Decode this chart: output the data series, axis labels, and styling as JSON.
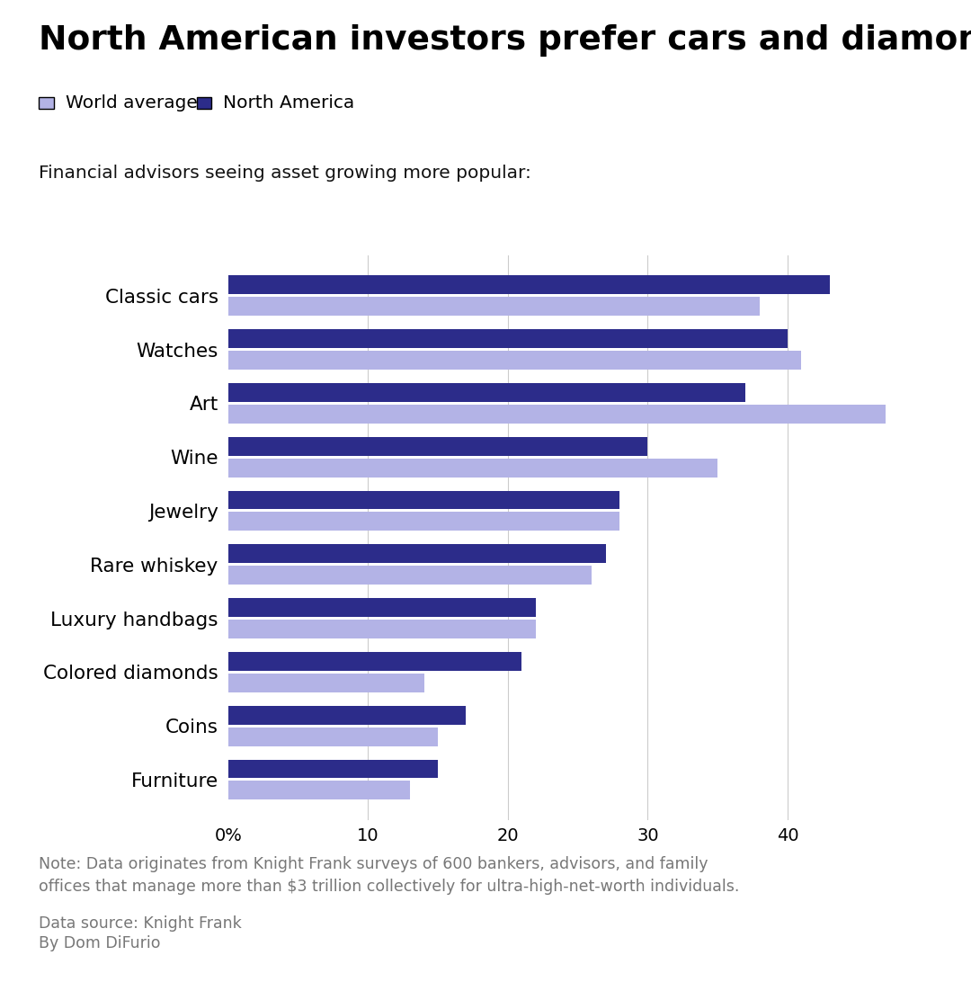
{
  "title": "North American investors prefer cars and diamonds",
  "subtitle": "Financial advisors seeing asset growing more popular:",
  "categories": [
    "Classic cars",
    "Watches",
    "Art",
    "Wine",
    "Jewelry",
    "Rare whiskey",
    "Luxury handbags",
    "Colored diamonds",
    "Coins",
    "Furniture"
  ],
  "world_avg": [
    38,
    41,
    47,
    35,
    28,
    26,
    22,
    14,
    15,
    13
  ],
  "north_america": [
    43,
    40,
    37,
    30,
    28,
    27,
    22,
    21,
    17,
    15
  ],
  "color_world": "#b3b3e6",
  "color_na": "#2c2c8a",
  "xlabel_ticks": [
    0,
    10,
    20,
    30,
    40
  ],
  "xlabel_labels": [
    "0%",
    "10",
    "20",
    "30",
    "40"
  ],
  "note": "Note: Data originates from Knight Frank surveys of 600 bankers, advisors, and family\noffices that manage more than $3 trillion collectively for ultra-high-net-worth individuals.",
  "data_source": "Data source: Knight Frank",
  "author": "By Dom DiFurio",
  "legend_world": "World average",
  "legend_na": "North America",
  "background_color": "#ffffff",
  "grid_color": "#cccccc",
  "grid_linewidth": 0.8,
  "bar_height": 0.35,
  "bar_gap": 0.05
}
